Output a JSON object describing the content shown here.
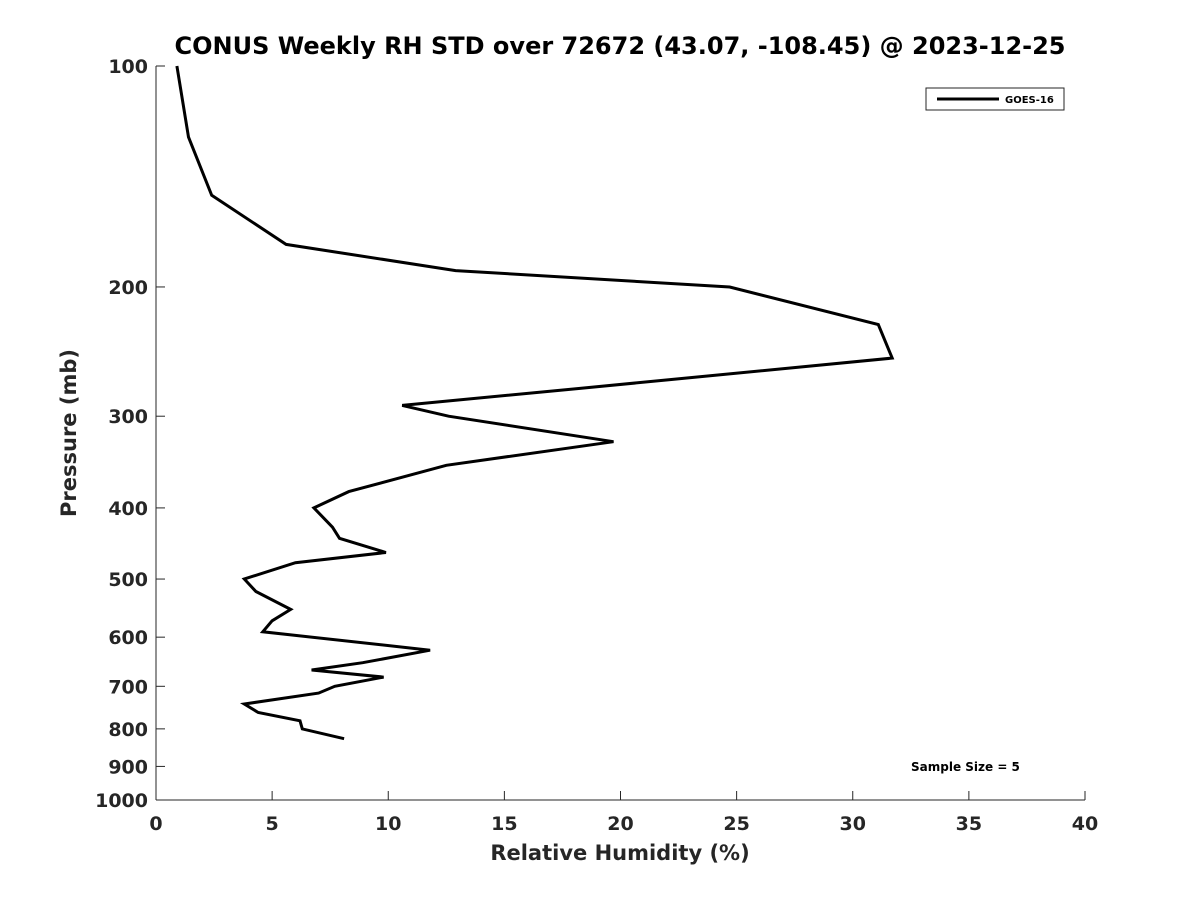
{
  "chart_data": {
    "type": "line",
    "title": "CONUS Weekly RH STD over 72672 (43.07, -108.45) @ 2023-12-25",
    "xlabel": "Relative Humidity (%)",
    "ylabel": "Pressure (mb)",
    "xlim": [
      0,
      40
    ],
    "ylim": [
      100,
      1000
    ],
    "y_scale": "log",
    "y_reversed": true,
    "x_ticks": [
      "0",
      "5",
      "10",
      "15",
      "20",
      "25",
      "30",
      "35",
      "40"
    ],
    "y_ticks": [
      "100",
      "200",
      "300",
      "400",
      "500",
      "600",
      "700",
      "800",
      "900",
      "1000"
    ],
    "grid": false,
    "legend_position": "top-right",
    "annotation": "Sample Size = 5",
    "series": [
      {
        "name": "GOES-16",
        "color": "#000000",
        "points": [
          {
            "x": 0.9,
            "y": 100
          },
          {
            "x": 1.4,
            "y": 125
          },
          {
            "x": 2.4,
            "y": 150
          },
          {
            "x": 5.6,
            "y": 175
          },
          {
            "x": 12.9,
            "y": 190
          },
          {
            "x": 24.7,
            "y": 200
          },
          {
            "x": 31.1,
            "y": 225
          },
          {
            "x": 31.7,
            "y": 250
          },
          {
            "x": 18.2,
            "y": 275
          },
          {
            "x": 10.6,
            "y": 290
          },
          {
            "x": 12.6,
            "y": 300
          },
          {
            "x": 19.7,
            "y": 325
          },
          {
            "x": 12.5,
            "y": 350
          },
          {
            "x": 8.3,
            "y": 380
          },
          {
            "x": 6.8,
            "y": 400
          },
          {
            "x": 7.6,
            "y": 425
          },
          {
            "x": 7.9,
            "y": 440
          },
          {
            "x": 9.9,
            "y": 460
          },
          {
            "x": 6.0,
            "y": 475
          },
          {
            "x": 3.8,
            "y": 500
          },
          {
            "x": 4.3,
            "y": 520
          },
          {
            "x": 5.8,
            "y": 550
          },
          {
            "x": 5.0,
            "y": 570
          },
          {
            "x": 4.6,
            "y": 590
          },
          {
            "x": 11.8,
            "y": 625
          },
          {
            "x": 8.9,
            "y": 650
          },
          {
            "x": 6.7,
            "y": 665
          },
          {
            "x": 9.8,
            "y": 680
          },
          {
            "x": 7.7,
            "y": 700
          },
          {
            "x": 7.0,
            "y": 715
          },
          {
            "x": 3.8,
            "y": 740
          },
          {
            "x": 4.4,
            "y": 760
          },
          {
            "x": 6.2,
            "y": 780
          },
          {
            "x": 6.3,
            "y": 800
          },
          {
            "x": 8.1,
            "y": 825
          }
        ]
      }
    ]
  }
}
